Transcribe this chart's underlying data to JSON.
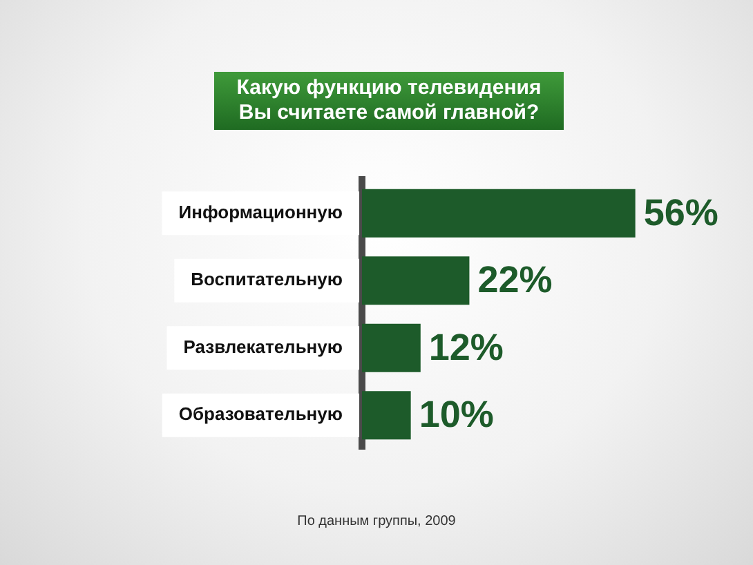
{
  "chart_data": {
    "type": "bar",
    "orientation": "horizontal",
    "legend": false,
    "title": "Какую функцию телевидения Вы считаете самой главной?",
    "categories": [
      "Информационную",
      "Воспитательную",
      "Развлекательную",
      "Образовательную"
    ],
    "series": [
      {
        "color": "#1d5b2a",
        "values": [
          56,
          22,
          12,
          10
        ],
        "value_labels": [
          "56%",
          "22%",
          "12%",
          "10%"
        ]
      }
    ],
    "annotations": [
      "По данным группы, 2009"
    ]
  }
}
